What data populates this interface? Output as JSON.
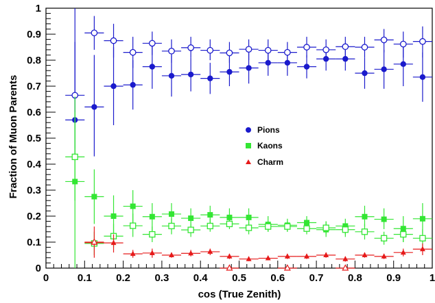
{
  "chart_data": {
    "type": "scatter",
    "xlabel": "cos (True Zenith)",
    "ylabel": "Fraction of Muon Parents",
    "xlim": [
      0,
      1
    ],
    "ylim": [
      0,
      1
    ],
    "x_ticks": [
      "0",
      "0.1",
      "0.2",
      "0.3",
      "0.4",
      "0.5",
      "0.6",
      "0.7",
      "0.8",
      "0.9",
      "1"
    ],
    "y_ticks": [
      "0",
      "0.1",
      "0.2",
      "0.3",
      "0.4",
      "0.5",
      "0.6",
      "0.7",
      "0.8",
      "0.9",
      "1"
    ],
    "legend_position": "center-right",
    "x_bin_half_width": 0.025,
    "colors": {
      "pions": "#1a1acc",
      "kaons": "#33e633",
      "charm": "#e61a1a"
    },
    "series": [
      {
        "name": "Pions",
        "key": "pions",
        "marker": "filled-circle",
        "color": "#1a1acc",
        "in_legend": true,
        "points": [
          {
            "x": 0.075,
            "y": 0.57,
            "lo": 0.43,
            "hi": 1.0
          },
          {
            "x": 0.125,
            "y": 0.62,
            "lo": 0.43,
            "hi": 0.82
          },
          {
            "x": 0.175,
            "y": 0.7,
            "lo": 0.55,
            "hi": 0.85
          },
          {
            "x": 0.225,
            "y": 0.705,
            "lo": 0.61,
            "hi": 0.8
          },
          {
            "x": 0.275,
            "y": 0.775,
            "lo": 0.69,
            "hi": 0.86
          },
          {
            "x": 0.325,
            "y": 0.74,
            "lo": 0.66,
            "hi": 0.82
          },
          {
            "x": 0.375,
            "y": 0.745,
            "lo": 0.68,
            "hi": 0.81
          },
          {
            "x": 0.425,
            "y": 0.73,
            "lo": 0.67,
            "hi": 0.79
          },
          {
            "x": 0.475,
            "y": 0.755,
            "lo": 0.7,
            "hi": 0.81
          },
          {
            "x": 0.525,
            "y": 0.77,
            "lo": 0.71,
            "hi": 0.83
          },
          {
            "x": 0.575,
            "y": 0.79,
            "lo": 0.74,
            "hi": 0.84
          },
          {
            "x": 0.625,
            "y": 0.79,
            "lo": 0.74,
            "hi": 0.84
          },
          {
            "x": 0.675,
            "y": 0.775,
            "lo": 0.73,
            "hi": 0.82
          },
          {
            "x": 0.725,
            "y": 0.805,
            "lo": 0.76,
            "hi": 0.85
          },
          {
            "x": 0.775,
            "y": 0.805,
            "lo": 0.76,
            "hi": 0.85
          },
          {
            "x": 0.825,
            "y": 0.75,
            "lo": 0.69,
            "hi": 0.81
          },
          {
            "x": 0.875,
            "y": 0.765,
            "lo": 0.69,
            "hi": 0.84
          },
          {
            "x": 0.925,
            "y": 0.785,
            "lo": 0.7,
            "hi": 0.87
          },
          {
            "x": 0.975,
            "y": 0.735,
            "lo": 0.64,
            "hi": 0.83
          }
        ]
      },
      {
        "name": "Pions (open)",
        "key": "pions_open",
        "marker": "open-circle",
        "color": "#1a1acc",
        "in_legend": false,
        "points": [
          {
            "x": 0.075,
            "y": 0.665,
            "lo": 0.46,
            "hi": 0.87
          },
          {
            "x": 0.125,
            "y": 0.905,
            "lo": 0.84,
            "hi": 0.97
          },
          {
            "x": 0.175,
            "y": 0.875,
            "lo": 0.81,
            "hi": 0.94
          },
          {
            "x": 0.225,
            "y": 0.83,
            "lo": 0.77,
            "hi": 0.89
          },
          {
            "x": 0.275,
            "y": 0.865,
            "lo": 0.82,
            "hi": 0.91
          },
          {
            "x": 0.325,
            "y": 0.835,
            "lo": 0.79,
            "hi": 0.88
          },
          {
            "x": 0.375,
            "y": 0.848,
            "lo": 0.81,
            "hi": 0.89
          },
          {
            "x": 0.425,
            "y": 0.838,
            "lo": 0.8,
            "hi": 0.88
          },
          {
            "x": 0.475,
            "y": 0.828,
            "lo": 0.79,
            "hi": 0.87
          },
          {
            "x": 0.525,
            "y": 0.842,
            "lo": 0.8,
            "hi": 0.88
          },
          {
            "x": 0.575,
            "y": 0.838,
            "lo": 0.8,
            "hi": 0.88
          },
          {
            "x": 0.625,
            "y": 0.83,
            "lo": 0.79,
            "hi": 0.87
          },
          {
            "x": 0.675,
            "y": 0.85,
            "lo": 0.81,
            "hi": 0.89
          },
          {
            "x": 0.725,
            "y": 0.84,
            "lo": 0.8,
            "hi": 0.88
          },
          {
            "x": 0.775,
            "y": 0.852,
            "lo": 0.81,
            "hi": 0.89
          },
          {
            "x": 0.825,
            "y": 0.85,
            "lo": 0.81,
            "hi": 0.89
          },
          {
            "x": 0.875,
            "y": 0.878,
            "lo": 0.83,
            "hi": 0.92
          },
          {
            "x": 0.925,
            "y": 0.862,
            "lo": 0.81,
            "hi": 0.91
          },
          {
            "x": 0.975,
            "y": 0.872,
            "lo": 0.81,
            "hi": 0.93
          }
        ]
      },
      {
        "name": "Kaons",
        "key": "kaons",
        "marker": "filled-square",
        "color": "#33e633",
        "in_legend": true,
        "points": [
          {
            "x": 0.075,
            "y": 0.333,
            "lo": 0.0,
            "hi": 0.66
          },
          {
            "x": 0.125,
            "y": 0.275,
            "lo": 0.17,
            "hi": 0.38
          },
          {
            "x": 0.175,
            "y": 0.2,
            "lo": 0.12,
            "hi": 0.28
          },
          {
            "x": 0.225,
            "y": 0.238,
            "lo": 0.17,
            "hi": 0.3
          },
          {
            "x": 0.275,
            "y": 0.198,
            "lo": 0.14,
            "hi": 0.25
          },
          {
            "x": 0.325,
            "y": 0.208,
            "lo": 0.17,
            "hi": 0.25
          },
          {
            "x": 0.375,
            "y": 0.192,
            "lo": 0.16,
            "hi": 0.23
          },
          {
            "x": 0.425,
            "y": 0.205,
            "lo": 0.17,
            "hi": 0.24
          },
          {
            "x": 0.475,
            "y": 0.195,
            "lo": 0.16,
            "hi": 0.23
          },
          {
            "x": 0.525,
            "y": 0.195,
            "lo": 0.16,
            "hi": 0.23
          },
          {
            "x": 0.575,
            "y": 0.168,
            "lo": 0.14,
            "hi": 0.2
          },
          {
            "x": 0.625,
            "y": 0.165,
            "lo": 0.14,
            "hi": 0.19
          },
          {
            "x": 0.675,
            "y": 0.175,
            "lo": 0.15,
            "hi": 0.2
          },
          {
            "x": 0.725,
            "y": 0.148,
            "lo": 0.12,
            "hi": 0.18
          },
          {
            "x": 0.775,
            "y": 0.162,
            "lo": 0.13,
            "hi": 0.19
          },
          {
            "x": 0.825,
            "y": 0.198,
            "lo": 0.16,
            "hi": 0.24
          },
          {
            "x": 0.875,
            "y": 0.188,
            "lo": 0.15,
            "hi": 0.23
          },
          {
            "x": 0.925,
            "y": 0.152,
            "lo": 0.1,
            "hi": 0.2
          },
          {
            "x": 0.975,
            "y": 0.19,
            "lo": 0.13,
            "hi": 0.25
          }
        ]
      },
      {
        "name": "Kaons (open)",
        "key": "kaons_open",
        "marker": "open-square",
        "color": "#33e633",
        "in_legend": false,
        "points": [
          {
            "x": 0.075,
            "y": 0.428,
            "lo": 0.26,
            "hi": 0.6
          },
          {
            "x": 0.125,
            "y": 0.095,
            "lo": 0.05,
            "hi": 0.14
          },
          {
            "x": 0.175,
            "y": 0.123,
            "lo": 0.08,
            "hi": 0.17
          },
          {
            "x": 0.225,
            "y": 0.163,
            "lo": 0.12,
            "hi": 0.21
          },
          {
            "x": 0.275,
            "y": 0.13,
            "lo": 0.1,
            "hi": 0.16
          },
          {
            "x": 0.325,
            "y": 0.162,
            "lo": 0.13,
            "hi": 0.19
          },
          {
            "x": 0.375,
            "y": 0.147,
            "lo": 0.12,
            "hi": 0.17
          },
          {
            "x": 0.425,
            "y": 0.162,
            "lo": 0.14,
            "hi": 0.19
          },
          {
            "x": 0.475,
            "y": 0.17,
            "lo": 0.15,
            "hi": 0.19
          },
          {
            "x": 0.525,
            "y": 0.155,
            "lo": 0.13,
            "hi": 0.18
          },
          {
            "x": 0.575,
            "y": 0.16,
            "lo": 0.14,
            "hi": 0.18
          },
          {
            "x": 0.625,
            "y": 0.16,
            "lo": 0.14,
            "hi": 0.18
          },
          {
            "x": 0.675,
            "y": 0.152,
            "lo": 0.13,
            "hi": 0.17
          },
          {
            "x": 0.725,
            "y": 0.155,
            "lo": 0.13,
            "hi": 0.18
          },
          {
            "x": 0.775,
            "y": 0.148,
            "lo": 0.12,
            "hi": 0.17
          },
          {
            "x": 0.825,
            "y": 0.14,
            "lo": 0.11,
            "hi": 0.17
          },
          {
            "x": 0.875,
            "y": 0.115,
            "lo": 0.09,
            "hi": 0.14
          },
          {
            "x": 0.925,
            "y": 0.13,
            "lo": 0.1,
            "hi": 0.16
          },
          {
            "x": 0.975,
            "y": 0.115,
            "lo": 0.08,
            "hi": 0.15
          }
        ]
      },
      {
        "name": "Charm",
        "key": "charm",
        "marker": "filled-triangle",
        "color": "#e61a1a",
        "in_legend": true,
        "points": [
          {
            "x": 0.125,
            "y": 0.098,
            "lo": 0.04,
            "hi": 0.16
          },
          {
            "x": 0.175,
            "y": 0.097,
            "lo": 0.06,
            "hi": 0.13
          },
          {
            "x": 0.225,
            "y": 0.055,
            "lo": 0.04,
            "hi": 0.07
          },
          {
            "x": 0.275,
            "y": 0.058,
            "lo": 0.04,
            "hi": 0.075
          },
          {
            "x": 0.325,
            "y": 0.05,
            "lo": 0.04,
            "hi": 0.06
          },
          {
            "x": 0.375,
            "y": 0.057,
            "lo": 0.045,
            "hi": 0.07
          },
          {
            "x": 0.425,
            "y": 0.063,
            "lo": 0.05,
            "hi": 0.075
          },
          {
            "x": 0.475,
            "y": 0.045,
            "lo": 0.035,
            "hi": 0.055
          },
          {
            "x": 0.525,
            "y": 0.035,
            "lo": 0.027,
            "hi": 0.043
          },
          {
            "x": 0.575,
            "y": 0.038,
            "lo": 0.03,
            "hi": 0.046
          },
          {
            "x": 0.625,
            "y": 0.045,
            "lo": 0.035,
            "hi": 0.055
          },
          {
            "x": 0.675,
            "y": 0.045,
            "lo": 0.035,
            "hi": 0.055
          },
          {
            "x": 0.725,
            "y": 0.05,
            "lo": 0.04,
            "hi": 0.06
          },
          {
            "x": 0.775,
            "y": 0.035,
            "lo": 0.025,
            "hi": 0.045
          },
          {
            "x": 0.825,
            "y": 0.05,
            "lo": 0.04,
            "hi": 0.06
          },
          {
            "x": 0.875,
            "y": 0.045,
            "lo": 0.035,
            "hi": 0.055
          },
          {
            "x": 0.925,
            "y": 0.06,
            "lo": 0.045,
            "hi": 0.075
          },
          {
            "x": 0.975,
            "y": 0.073,
            "lo": 0.05,
            "hi": 0.095
          }
        ]
      },
      {
        "name": "Charm (open)",
        "key": "charm_open",
        "marker": "open-triangle",
        "color": "#e61a1a",
        "in_legend": false,
        "points": [
          {
            "x": 0.125,
            "y": 0.1,
            "lo": 0.1,
            "hi": 0.1
          },
          {
            "x": 0.475,
            "y": 0.0,
            "lo": 0.0,
            "hi": 0.0
          },
          {
            "x": 0.625,
            "y": 0.0,
            "lo": 0.0,
            "hi": 0.0
          },
          {
            "x": 0.775,
            "y": 0.0,
            "lo": 0.0,
            "hi": 0.0
          }
        ]
      }
    ]
  }
}
